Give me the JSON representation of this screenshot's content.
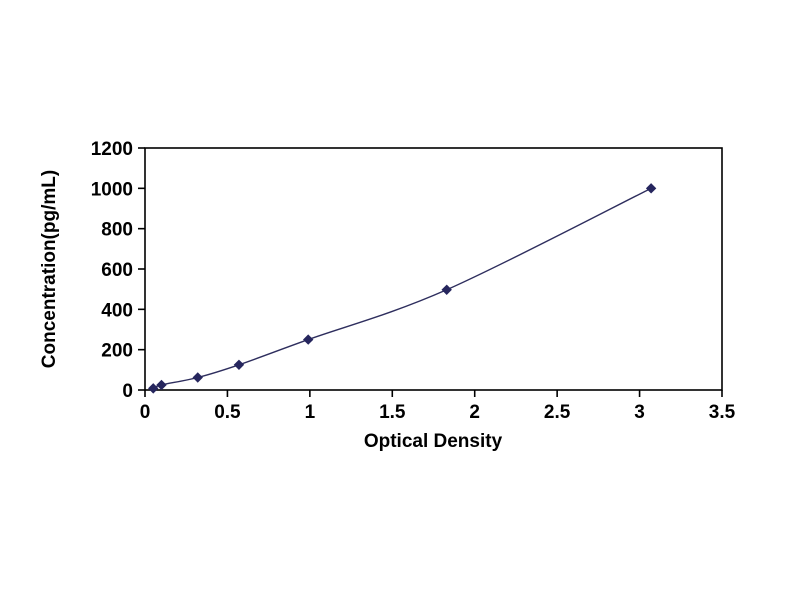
{
  "chart_data": {
    "type": "line",
    "title": "",
    "xlabel": "Optical Density",
    "ylabel": "Concentration(pg/mL)",
    "x": [
      0.05,
      0.1,
      0.32,
      0.57,
      0.99,
      1.83,
      3.07
    ],
    "y": [
      8,
      25,
      62,
      125,
      250,
      497,
      1000
    ],
    "xlim": [
      0,
      3.5
    ],
    "ylim": [
      0,
      1200
    ],
    "xticks": [
      {
        "value": 0,
        "label": "0"
      },
      {
        "value": 0.5,
        "label": "0.5"
      },
      {
        "value": 1,
        "label": "1"
      },
      {
        "value": 1.5,
        "label": "1.5"
      },
      {
        "value": 2,
        "label": "2"
      },
      {
        "value": 2.5,
        "label": "2.5"
      },
      {
        "value": 3,
        "label": "3"
      },
      {
        "value": 3.5,
        "label": "3.5"
      }
    ],
    "yticks": [
      {
        "value": 0,
        "label": "0"
      },
      {
        "value": 200,
        "label": "200"
      },
      {
        "value": 400,
        "label": "400"
      },
      {
        "value": 600,
        "label": "600"
      },
      {
        "value": 800,
        "label": "800"
      },
      {
        "value": 1000,
        "label": "1000"
      },
      {
        "value": 1200,
        "label": "1200"
      }
    ],
    "grid": false,
    "legend": "none",
    "colors": {
      "line": "#2e2e5e",
      "marker": "#26265e",
      "frame": "#000000",
      "background": "#ffffff"
    },
    "marker_shape": "diamond"
  }
}
